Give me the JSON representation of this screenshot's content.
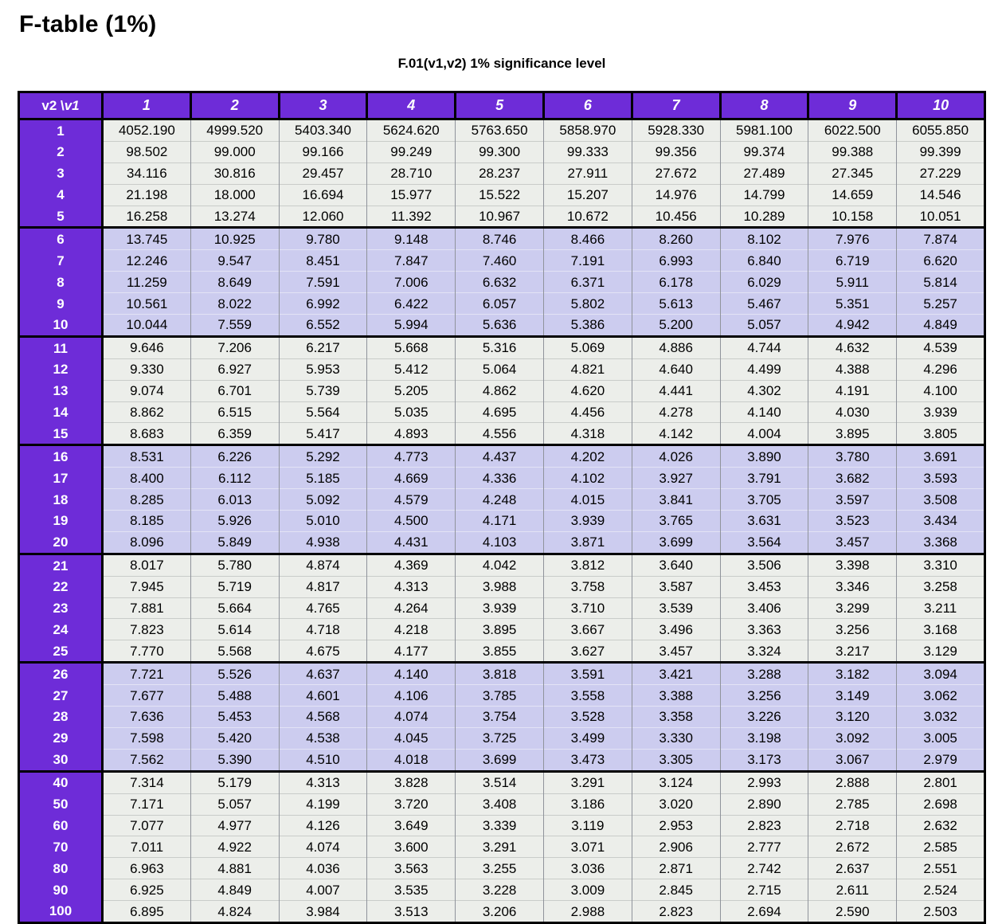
{
  "page_title": "F-table (1%)",
  "subtitle": "F.01(v1,v2) 1% significance level",
  "table": {
    "corner_label_v2": "v2 \\",
    "corner_label_v1": "v1",
    "column_headers": [
      "1",
      "2",
      "3",
      "4",
      "5",
      "6",
      "7",
      "8",
      "9",
      "10"
    ],
    "colors": {
      "header_purple": "#6e2cd8",
      "band_light": "#eceeea",
      "band_lavender": "#ccccef",
      "grid_vertical": "#8f939b",
      "sep_light": "#c9ccc9",
      "sep_lavender": "#e3e3f5",
      "border_black": "#000000"
    },
    "groups": [
      {
        "shade": "light",
        "rows": [
          {
            "v2": "1",
            "values": [
              "4052.190",
              "4999.520",
              "5403.340",
              "5624.620",
              "5763.650",
              "5858.970",
              "5928.330",
              "5981.100",
              "6022.500",
              "6055.850"
            ]
          },
          {
            "v2": "2",
            "values": [
              "98.502",
              "99.000",
              "99.166",
              "99.249",
              "99.300",
              "99.333",
              "99.356",
              "99.374",
              "99.388",
              "99.399"
            ]
          },
          {
            "v2": "3",
            "values": [
              "34.116",
              "30.816",
              "29.457",
              "28.710",
              "28.237",
              "27.911",
              "27.672",
              "27.489",
              "27.345",
              "27.229"
            ]
          },
          {
            "v2": "4",
            "values": [
              "21.198",
              "18.000",
              "16.694",
              "15.977",
              "15.522",
              "15.207",
              "14.976",
              "14.799",
              "14.659",
              "14.546"
            ]
          },
          {
            "v2": "5",
            "values": [
              "16.258",
              "13.274",
              "12.060",
              "11.392",
              "10.967",
              "10.672",
              "10.456",
              "10.289",
              "10.158",
              "10.051"
            ]
          }
        ]
      },
      {
        "shade": "lavender",
        "rows": [
          {
            "v2": "6",
            "values": [
              "13.745",
              "10.925",
              "9.780",
              "9.148",
              "8.746",
              "8.466",
              "8.260",
              "8.102",
              "7.976",
              "7.874"
            ]
          },
          {
            "v2": "7",
            "values": [
              "12.246",
              "9.547",
              "8.451",
              "7.847",
              "7.460",
              "7.191",
              "6.993",
              "6.840",
              "6.719",
              "6.620"
            ]
          },
          {
            "v2": "8",
            "values": [
              "11.259",
              "8.649",
              "7.591",
              "7.006",
              "6.632",
              "6.371",
              "6.178",
              "6.029",
              "5.911",
              "5.814"
            ]
          },
          {
            "v2": "9",
            "values": [
              "10.561",
              "8.022",
              "6.992",
              "6.422",
              "6.057",
              "5.802",
              "5.613",
              "5.467",
              "5.351",
              "5.257"
            ]
          },
          {
            "v2": "10",
            "values": [
              "10.044",
              "7.559",
              "6.552",
              "5.994",
              "5.636",
              "5.386",
              "5.200",
              "5.057",
              "4.942",
              "4.849"
            ]
          }
        ]
      },
      {
        "shade": "light",
        "rows": [
          {
            "v2": "11",
            "values": [
              "9.646",
              "7.206",
              "6.217",
              "5.668",
              "5.316",
              "5.069",
              "4.886",
              "4.744",
              "4.632",
              "4.539"
            ]
          },
          {
            "v2": "12",
            "values": [
              "9.330",
              "6.927",
              "5.953",
              "5.412",
              "5.064",
              "4.821",
              "4.640",
              "4.499",
              "4.388",
              "4.296"
            ]
          },
          {
            "v2": "13",
            "values": [
              "9.074",
              "6.701",
              "5.739",
              "5.205",
              "4.862",
              "4.620",
              "4.441",
              "4.302",
              "4.191",
              "4.100"
            ]
          },
          {
            "v2": "14",
            "values": [
              "8.862",
              "6.515",
              "5.564",
              "5.035",
              "4.695",
              "4.456",
              "4.278",
              "4.140",
              "4.030",
              "3.939"
            ]
          },
          {
            "v2": "15",
            "values": [
              "8.683",
              "6.359",
              "5.417",
              "4.893",
              "4.556",
              "4.318",
              "4.142",
              "4.004",
              "3.895",
              "3.805"
            ]
          }
        ]
      },
      {
        "shade": "lavender",
        "rows": [
          {
            "v2": "16",
            "values": [
              "8.531",
              "6.226",
              "5.292",
              "4.773",
              "4.437",
              "4.202",
              "4.026",
              "3.890",
              "3.780",
              "3.691"
            ]
          },
          {
            "v2": "17",
            "values": [
              "8.400",
              "6.112",
              "5.185",
              "4.669",
              "4.336",
              "4.102",
              "3.927",
              "3.791",
              "3.682",
              "3.593"
            ]
          },
          {
            "v2": "18",
            "values": [
              "8.285",
              "6.013",
              "5.092",
              "4.579",
              "4.248",
              "4.015",
              "3.841",
              "3.705",
              "3.597",
              "3.508"
            ]
          },
          {
            "v2": "19",
            "values": [
              "8.185",
              "5.926",
              "5.010",
              "4.500",
              "4.171",
              "3.939",
              "3.765",
              "3.631",
              "3.523",
              "3.434"
            ]
          },
          {
            "v2": "20",
            "values": [
              "8.096",
              "5.849",
              "4.938",
              "4.431",
              "4.103",
              "3.871",
              "3.699",
              "3.564",
              "3.457",
              "3.368"
            ]
          }
        ]
      },
      {
        "shade": "light",
        "rows": [
          {
            "v2": "21",
            "values": [
              "8.017",
              "5.780",
              "4.874",
              "4.369",
              "4.042",
              "3.812",
              "3.640",
              "3.506",
              "3.398",
              "3.310"
            ]
          },
          {
            "v2": "22",
            "values": [
              "7.945",
              "5.719",
              "4.817",
              "4.313",
              "3.988",
              "3.758",
              "3.587",
              "3.453",
              "3.346",
              "3.258"
            ]
          },
          {
            "v2": "23",
            "values": [
              "7.881",
              "5.664",
              "4.765",
              "4.264",
              "3.939",
              "3.710",
              "3.539",
              "3.406",
              "3.299",
              "3.211"
            ]
          },
          {
            "v2": "24",
            "values": [
              "7.823",
              "5.614",
              "4.718",
              "4.218",
              "3.895",
              "3.667",
              "3.496",
              "3.363",
              "3.256",
              "3.168"
            ]
          },
          {
            "v2": "25",
            "values": [
              "7.770",
              "5.568",
              "4.675",
              "4.177",
              "3.855",
              "3.627",
              "3.457",
              "3.324",
              "3.217",
              "3.129"
            ]
          }
        ]
      },
      {
        "shade": "lavender",
        "rows": [
          {
            "v2": "26",
            "values": [
              "7.721",
              "5.526",
              "4.637",
              "4.140",
              "3.818",
              "3.591",
              "3.421",
              "3.288",
              "3.182",
              "3.094"
            ]
          },
          {
            "v2": "27",
            "values": [
              "7.677",
              "5.488",
              "4.601",
              "4.106",
              "3.785",
              "3.558",
              "3.388",
              "3.256",
              "3.149",
              "3.062"
            ]
          },
          {
            "v2": "28",
            "values": [
              "7.636",
              "5.453",
              "4.568",
              "4.074",
              "3.754",
              "3.528",
              "3.358",
              "3.226",
              "3.120",
              "3.032"
            ]
          },
          {
            "v2": "29",
            "values": [
              "7.598",
              "5.420",
              "4.538",
              "4.045",
              "3.725",
              "3.499",
              "3.330",
              "3.198",
              "3.092",
              "3.005"
            ]
          },
          {
            "v2": "30",
            "values": [
              "7.562",
              "5.390",
              "4.510",
              "4.018",
              "3.699",
              "3.473",
              "3.305",
              "3.173",
              "3.067",
              "2.979"
            ]
          }
        ]
      },
      {
        "shade": "light",
        "rows": [
          {
            "v2": "40",
            "values": [
              "7.314",
              "5.179",
              "4.313",
              "3.828",
              "3.514",
              "3.291",
              "3.124",
              "2.993",
              "2.888",
              "2.801"
            ]
          },
          {
            "v2": "50",
            "values": [
              "7.171",
              "5.057",
              "4.199",
              "3.720",
              "3.408",
              "3.186",
              "3.020",
              "2.890",
              "2.785",
              "2.698"
            ]
          },
          {
            "v2": "60",
            "values": [
              "7.077",
              "4.977",
              "4.126",
              "3.649",
              "3.339",
              "3.119",
              "2.953",
              "2.823",
              "2.718",
              "2.632"
            ]
          },
          {
            "v2": "70",
            "values": [
              "7.011",
              "4.922",
              "4.074",
              "3.600",
              "3.291",
              "3.071",
              "2.906",
              "2.777",
              "2.672",
              "2.585"
            ]
          },
          {
            "v2": "80",
            "values": [
              "6.963",
              "4.881",
              "4.036",
              "3.563",
              "3.255",
              "3.036",
              "2.871",
              "2.742",
              "2.637",
              "2.551"
            ]
          },
          {
            "v2": "90",
            "values": [
              "6.925",
              "4.849",
              "4.007",
              "3.535",
              "3.228",
              "3.009",
              "2.845",
              "2.715",
              "2.611",
              "2.524"
            ]
          },
          {
            "v2": "100",
            "values": [
              "6.895",
              "4.824",
              "3.984",
              "3.513",
              "3.206",
              "2.988",
              "2.823",
              "2.694",
              "2.590",
              "2.503"
            ]
          }
        ]
      }
    ]
  }
}
